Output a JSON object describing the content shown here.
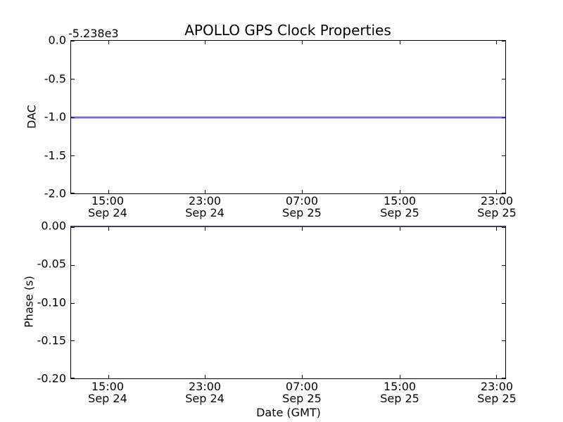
{
  "figure": {
    "background": "#ffffff",
    "spine_color": "#000000",
    "line_color": "#3c3cdc"
  },
  "chart_data": [
    {
      "type": "line",
      "title": "APOLLO GPS Clock Properties",
      "ylabel": "DAC",
      "y_offset_text": "-5.238e3",
      "ylim": [
        -2.0,
        0.0
      ],
      "yticks": [
        "0.0",
        "-0.5",
        "-1.0",
        "-1.5",
        "-2.0"
      ],
      "xticks": [
        {
          "time": "15:00",
          "date": "Sep 24"
        },
        {
          "time": "23:00",
          "date": "Sep 24"
        },
        {
          "time": "07:00",
          "date": "Sep 25"
        },
        {
          "time": "15:00",
          "date": "Sep 25"
        },
        {
          "time": "23:00",
          "date": "Sep 25"
        }
      ],
      "series": [
        {
          "name": "DAC",
          "shape": "constant",
          "y_value": -1.0,
          "color": "#3c3cdc",
          "note": "flat horizontal line at -1.0 spanning full x-range; with axis offset -5.238e3"
        }
      ],
      "grid": false,
      "legend": false
    },
    {
      "type": "line",
      "ylabel": "Phase (s)",
      "xlabel": "Date (GMT)",
      "ylim": [
        -0.2,
        0.0
      ],
      "yticks": [
        "0.00",
        "-0.05",
        "-0.10",
        "-0.15",
        "-0.20"
      ],
      "xticks": [
        {
          "time": "15:00",
          "date": "Sep 24"
        },
        {
          "time": "23:00",
          "date": "Sep 24"
        },
        {
          "time": "07:00",
          "date": "Sep 25"
        },
        {
          "time": "15:00",
          "date": "Sep 25"
        },
        {
          "time": "23:00",
          "date": "Sep 25"
        }
      ],
      "series": [
        {
          "name": "Phase",
          "shape": "constant",
          "y_value": 0.0,
          "color": "#3c3cdc",
          "note": "flat horizontal line at 0.00 coinciding with top axis spine"
        }
      ],
      "grid": false,
      "legend": false
    }
  ]
}
